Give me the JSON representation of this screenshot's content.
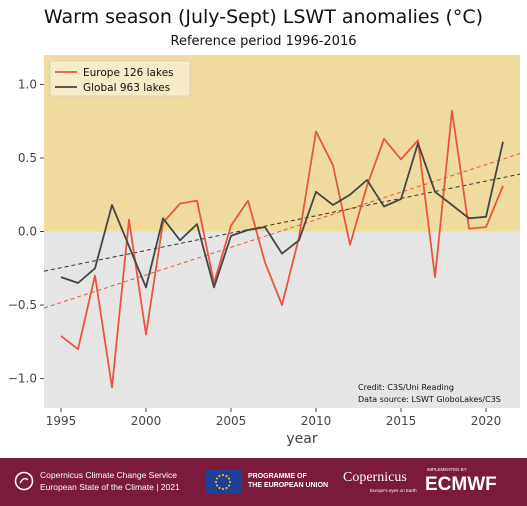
{
  "title": "Warm season (July-Sept) LSWT anomalies (°C)",
  "subtitle": "Reference period 1996-2016",
  "chart_data": {
    "type": "line",
    "xlabel": "year",
    "ylabel": "",
    "xlim": [
      1994,
      2022
    ],
    "ylim": [
      -1.2,
      1.2
    ],
    "x_ticks": [
      1995,
      2000,
      2005,
      2010,
      2015,
      2020
    ],
    "y_ticks": [
      -1.0,
      -0.5,
      0.0,
      0.5,
      1.0
    ],
    "y_tick_labels": [
      "−1.0",
      "−0.5",
      "0.0",
      "0.5",
      "1.0"
    ],
    "background_bands": [
      {
        "from": 0,
        "to": 1.2,
        "color": "#f0db9e"
      },
      {
        "from": -1.2,
        "to": 0,
        "color": "#e5e5e5"
      }
    ],
    "legend_position": "top-left",
    "series": [
      {
        "name": "Europe 126 lakes",
        "color": "#e8553e",
        "x": [
          1995,
          1996,
          1997,
          1998,
          1999,
          2000,
          2001,
          2002,
          2003,
          2004,
          2005,
          2006,
          2007,
          2008,
          2009,
          2010,
          2011,
          2012,
          2013,
          2014,
          2015,
          2016,
          2017,
          2018,
          2019,
          2020,
          2021
        ],
        "values": [
          -0.71,
          -0.8,
          -0.3,
          -1.06,
          0.08,
          -0.7,
          0.06,
          0.19,
          0.21,
          -0.35,
          0.04,
          0.21,
          -0.21,
          -0.5,
          -0.04,
          0.68,
          0.45,
          -0.09,
          0.31,
          0.63,
          0.49,
          0.62,
          -0.31,
          0.82,
          0.02,
          0.03,
          0.31
        ],
        "trend": {
          "color": "#e8553e",
          "start": -0.52,
          "end": 0.53
        }
      },
      {
        "name": "Global 963 lakes",
        "color": "#454545",
        "x": [
          1995,
          1996,
          1997,
          1998,
          1999,
          2000,
          2001,
          2002,
          2003,
          2004,
          2005,
          2006,
          2007,
          2008,
          2009,
          2010,
          2011,
          2012,
          2013,
          2014,
          2015,
          2016,
          2017,
          2018,
          2019,
          2020,
          2021
        ],
        "values": [
          -0.31,
          -0.35,
          -0.25,
          0.18,
          -0.1,
          -0.38,
          0.09,
          -0.06,
          0.05,
          -0.38,
          -0.03,
          0.01,
          0.03,
          -0.15,
          -0.06,
          0.27,
          0.18,
          0.25,
          0.35,
          0.17,
          0.22,
          0.6,
          0.27,
          0.18,
          0.09,
          0.1,
          0.61
        ],
        "trend": {
          "color": "#333333",
          "start": -0.27,
          "end": 0.39
        }
      }
    ],
    "annotation_lines": [
      "Credit: C3S/Uni Reading",
      "Data source: LSWT GloboLakes/C3S"
    ]
  },
  "footer": {
    "service_line1": "Copernicus Climate Change Service",
    "service_line2": "European State of the Climate | 2021",
    "programme_line1": "PROGRAMME OF",
    "programme_line2": "THE EUROPEAN UNION",
    "copernicus_logo": "Copernicus",
    "copernicus_tagline": "Europe's eyes on Earth",
    "implemented_by": "IMPLEMENTED BY",
    "ecmwf_logo": "ECMWF",
    "background_color": "#7b1b3c"
  }
}
